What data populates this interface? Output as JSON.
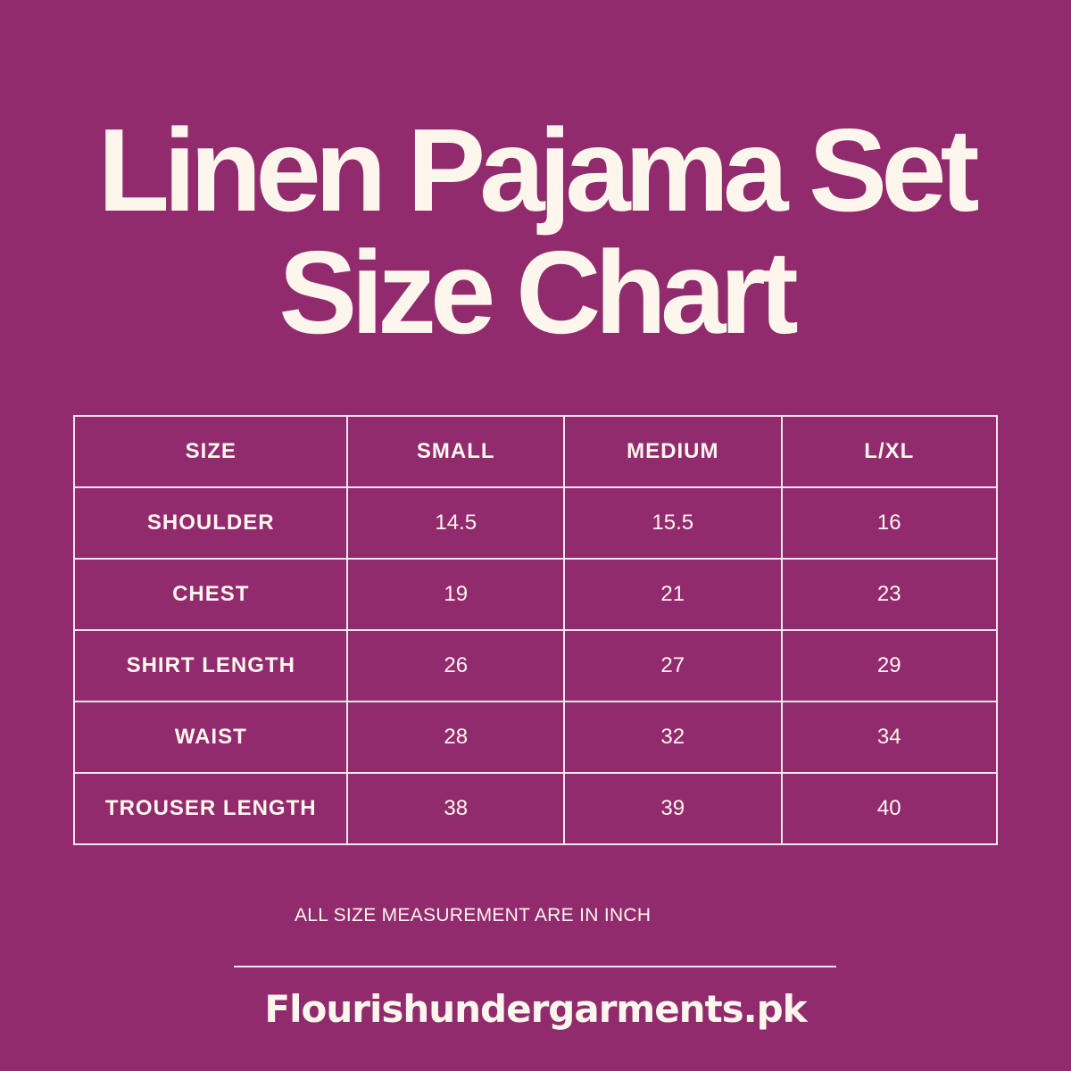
{
  "title": {
    "line1": "Linen Pajama Set",
    "line2": "Size Chart"
  },
  "colors": {
    "background": "#922a6e",
    "text": "#fdf6ec",
    "grid": "#f3e6ee"
  },
  "table": {
    "headers": [
      "SIZE",
      "SMALL",
      "MEDIUM",
      "L/XL"
    ],
    "rows": [
      {
        "label": "SHOULDER",
        "values": [
          "14.5",
          "15.5",
          "16"
        ]
      },
      {
        "label": "CHEST",
        "values": [
          "19",
          "21",
          "23"
        ]
      },
      {
        "label": "SHIRT LENGTH",
        "values": [
          "26",
          "27",
          "29"
        ]
      },
      {
        "label": "WAIST",
        "values": [
          "28",
          "32",
          "34"
        ]
      },
      {
        "label": "TROUSER LENGTH",
        "values": [
          "38",
          "39",
          "40"
        ]
      }
    ]
  },
  "note": "ALL SIZE MEASUREMENT ARE IN INCH",
  "website": "Flourishundergarments.pk"
}
